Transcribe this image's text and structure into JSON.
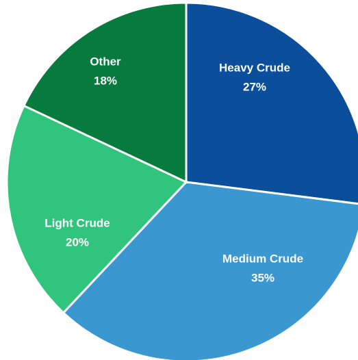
{
  "chart_data": {
    "type": "pie",
    "categories": [
      "Heavy Crude",
      "Medium Crude",
      "Light Crude",
      "Other"
    ],
    "values": [
      27,
      35,
      20,
      18
    ],
    "value_labels": [
      "27%",
      "35%",
      "20%",
      "18%"
    ],
    "colors": [
      "#0b4f9c",
      "#3a97cf",
      "#31c47c",
      "#077a3d"
    ]
  }
}
